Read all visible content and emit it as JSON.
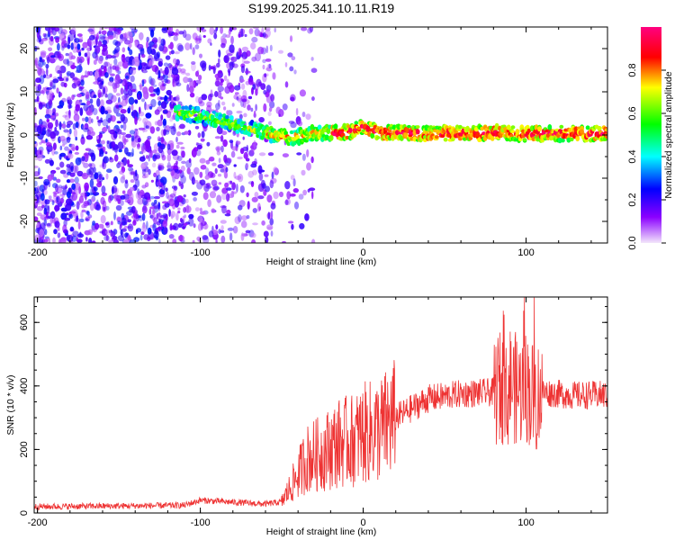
{
  "chart_data": [
    {
      "type": "heatmap",
      "title": "S199.2025.341.10.11.R19",
      "xlabel": "Height of straight line (km)",
      "ylabel": "Frequency (Hz)",
      "xlim": [
        -202,
        150
      ],
      "ylim": [
        -25,
        25
      ],
      "xticks": [
        -200,
        -100,
        0,
        100
      ],
      "yticks": [
        -20,
        -10,
        0,
        10,
        20
      ],
      "colorbar": {
        "label": "Normalized spectral amplitude",
        "range": [
          0.0,
          1.0
        ],
        "ticks": [
          0.0,
          0.2,
          0.4,
          0.6,
          0.8
        ],
        "colors": [
          "#f3e6fb",
          "#8b00ff",
          "#0000ff",
          "#00ffff",
          "#00ff00",
          "#ffff00",
          "#ff0000",
          "#ff0080"
        ]
      },
      "description_ridge": {
        "x": [
          -110,
          -100,
          -90,
          -80,
          -70,
          -60,
          -50,
          -40,
          -30,
          -20,
          -10,
          0,
          10,
          20,
          40,
          60,
          80,
          100,
          120,
          150
        ],
        "y": [
          5,
          4.5,
          3.5,
          2.5,
          1.5,
          0.5,
          -0.5,
          -0.5,
          0.5,
          0.5,
          0.5,
          2.0,
          0.5,
          0.5,
          0.3,
          0.3,
          0.5,
          0.3,
          0.3,
          0.3
        ]
      }
    },
    {
      "type": "line",
      "xlabel": "Height of straight line (km)",
      "ylabel": "SNR (10 * v/v)",
      "xlim": [
        -202,
        150
      ],
      "ylim": [
        0,
        680
      ],
      "xticks": [
        -200,
        -100,
        0,
        100
      ],
      "yticks": [
        0,
        200,
        400,
        600
      ],
      "series": [
        {
          "name": "SNR",
          "color": "#ee3333",
          "envelope_x": [
            -202,
            -150,
            -110,
            -100,
            -60,
            -50,
            -40,
            -35,
            -25,
            -15,
            -5,
            0,
            10,
            20,
            30,
            40,
            60,
            80,
            85,
            88,
            90,
            95,
            100,
            105,
            110,
            130,
            150
          ],
          "envelope_y": [
            20,
            22,
            24,
            40,
            28,
            35,
            120,
            170,
            190,
            220,
            230,
            250,
            260,
            300,
            330,
            360,
            375,
            380,
            400,
            350,
            420,
            380,
            400,
            360,
            380,
            370,
            372
          ]
        }
      ]
    }
  ]
}
